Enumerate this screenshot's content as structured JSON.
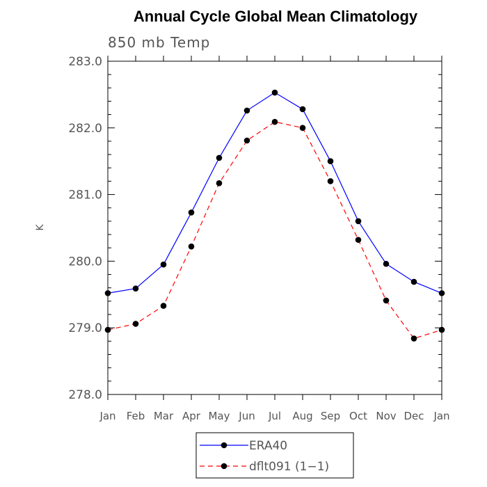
{
  "chart_data": {
    "type": "line",
    "title": "Annual Cycle Global Mean Climatology",
    "subtitle": "850 mb Temp",
    "xlabel": "",
    "ylabel": "K",
    "categories": [
      "Jan",
      "Feb",
      "Mar",
      "Apr",
      "May",
      "Jun",
      "Jul",
      "Aug",
      "Sep",
      "Oct",
      "Nov",
      "Dec",
      "Jan"
    ],
    "ylim": [
      278.0,
      283.0
    ],
    "yticks": [
      "278.0",
      "279.0",
      "280.0",
      "281.0",
      "282.0",
      "283.0"
    ],
    "grid": false,
    "legend_position": "bottom-center",
    "series": [
      {
        "name": "ERA40",
        "color": "#0000ff",
        "line_style": "solid",
        "marker": "circle",
        "values": [
          279.52,
          279.59,
          279.95,
          280.73,
          281.55,
          282.26,
          282.53,
          282.28,
          281.5,
          280.6,
          279.96,
          279.69,
          279.52
        ]
      },
      {
        "name": "dflt091 (1−1)",
        "color": "#ff0000",
        "line_style": "dashed",
        "marker": "circle",
        "values": [
          278.97,
          279.06,
          279.33,
          280.22,
          281.17,
          281.81,
          282.09,
          282.0,
          281.2,
          280.32,
          279.41,
          278.84,
          278.97
        ]
      }
    ]
  }
}
